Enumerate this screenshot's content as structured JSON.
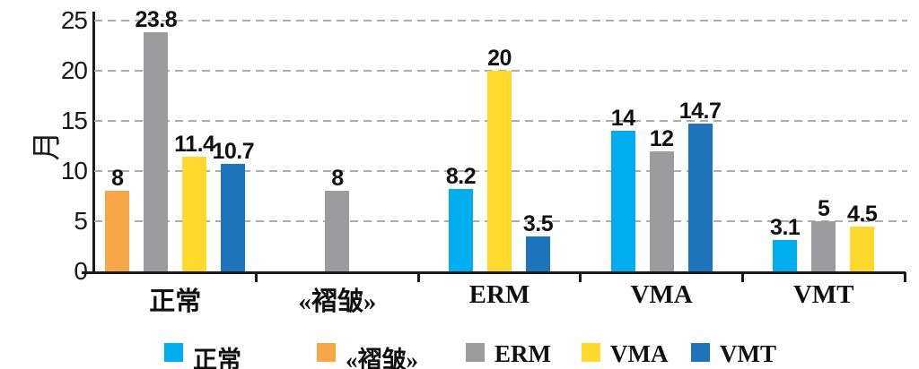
{
  "chart_data": {
    "type": "bar",
    "title": "",
    "xlabel": "",
    "ylabel": "月",
    "ylim": [
      0,
      25
    ],
    "yticks": [
      0,
      5,
      10,
      15,
      20,
      25
    ],
    "grid": "dashed-horizontal",
    "legend_position": "bottom",
    "categories": [
      "正常",
      "«褶皱»",
      "ERM",
      "VMA",
      "VMT"
    ],
    "series": [
      {
        "name": "正常",
        "color": "#00AEEF",
        "values": [
          null,
          null,
          8.2,
          14,
          3.1
        ]
      },
      {
        "name": "«褶皱»",
        "color": "#F7A648",
        "values": [
          8,
          null,
          null,
          null,
          null
        ]
      },
      {
        "name": "ERM",
        "color": "#9C9C9E",
        "values": [
          23.8,
          8,
          null,
          12,
          5
        ]
      },
      {
        "name": "VMA",
        "color": "#FFD92B",
        "values": [
          11.4,
          null,
          20,
          null,
          4.5
        ]
      },
      {
        "name": "VMT",
        "color": "#1E74BB",
        "values": [
          10.7,
          null,
          3.5,
          14.7,
          null
        ]
      }
    ],
    "colors": {
      "axis": "#1a1a1a",
      "gridline": "#ACACAC",
      "text": "#111111"
    }
  }
}
